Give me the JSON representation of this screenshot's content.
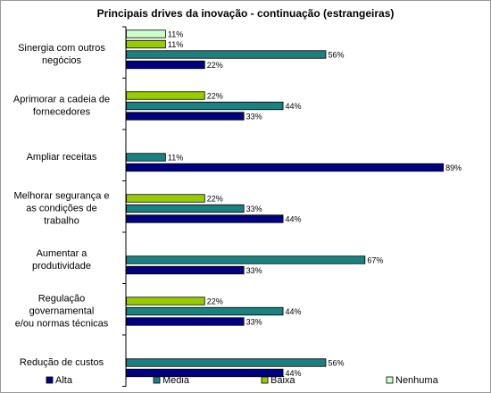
{
  "chart_data": {
    "type": "bar",
    "orientation": "horizontal",
    "title": "Principais drives da inovação - continuação (estrangeiras)",
    "xlim": [
      0,
      100
    ],
    "grid": false,
    "legend_position": "bottom",
    "categories": [
      [
        "Sinergia com outros",
        "negócios"
      ],
      [
        "Aprimorar a cadeia de",
        "fornecedores"
      ],
      [
        "Ampliar receitas"
      ],
      [
        "Melhorar segurança e",
        "as condições de",
        "trabalho"
      ],
      [
        "Aumentar a",
        "produtividade"
      ],
      [
        "Regulação",
        "governamental",
        "e/ou normas técnicas"
      ],
      [
        "Redução de custos"
      ]
    ],
    "series": [
      {
        "name": "Nenhuma",
        "color": "#ccffcc",
        "values": [
          11,
          null,
          null,
          null,
          null,
          null,
          null
        ]
      },
      {
        "name": "Baixa",
        "color": "#99cc00",
        "values": [
          11,
          22,
          null,
          22,
          null,
          22,
          null
        ]
      },
      {
        "name": "Media",
        "color": "#1a8080",
        "values": [
          56,
          44,
          11,
          33,
          67,
          44,
          56
        ]
      },
      {
        "name": "Alta",
        "color": "#000080",
        "values": [
          22,
          33,
          89,
          44,
          33,
          33,
          44
        ]
      }
    ],
    "value_suffix": "%",
    "legend_order": [
      "Alta",
      "Media",
      "Baixa",
      "Nenhuma"
    ]
  }
}
